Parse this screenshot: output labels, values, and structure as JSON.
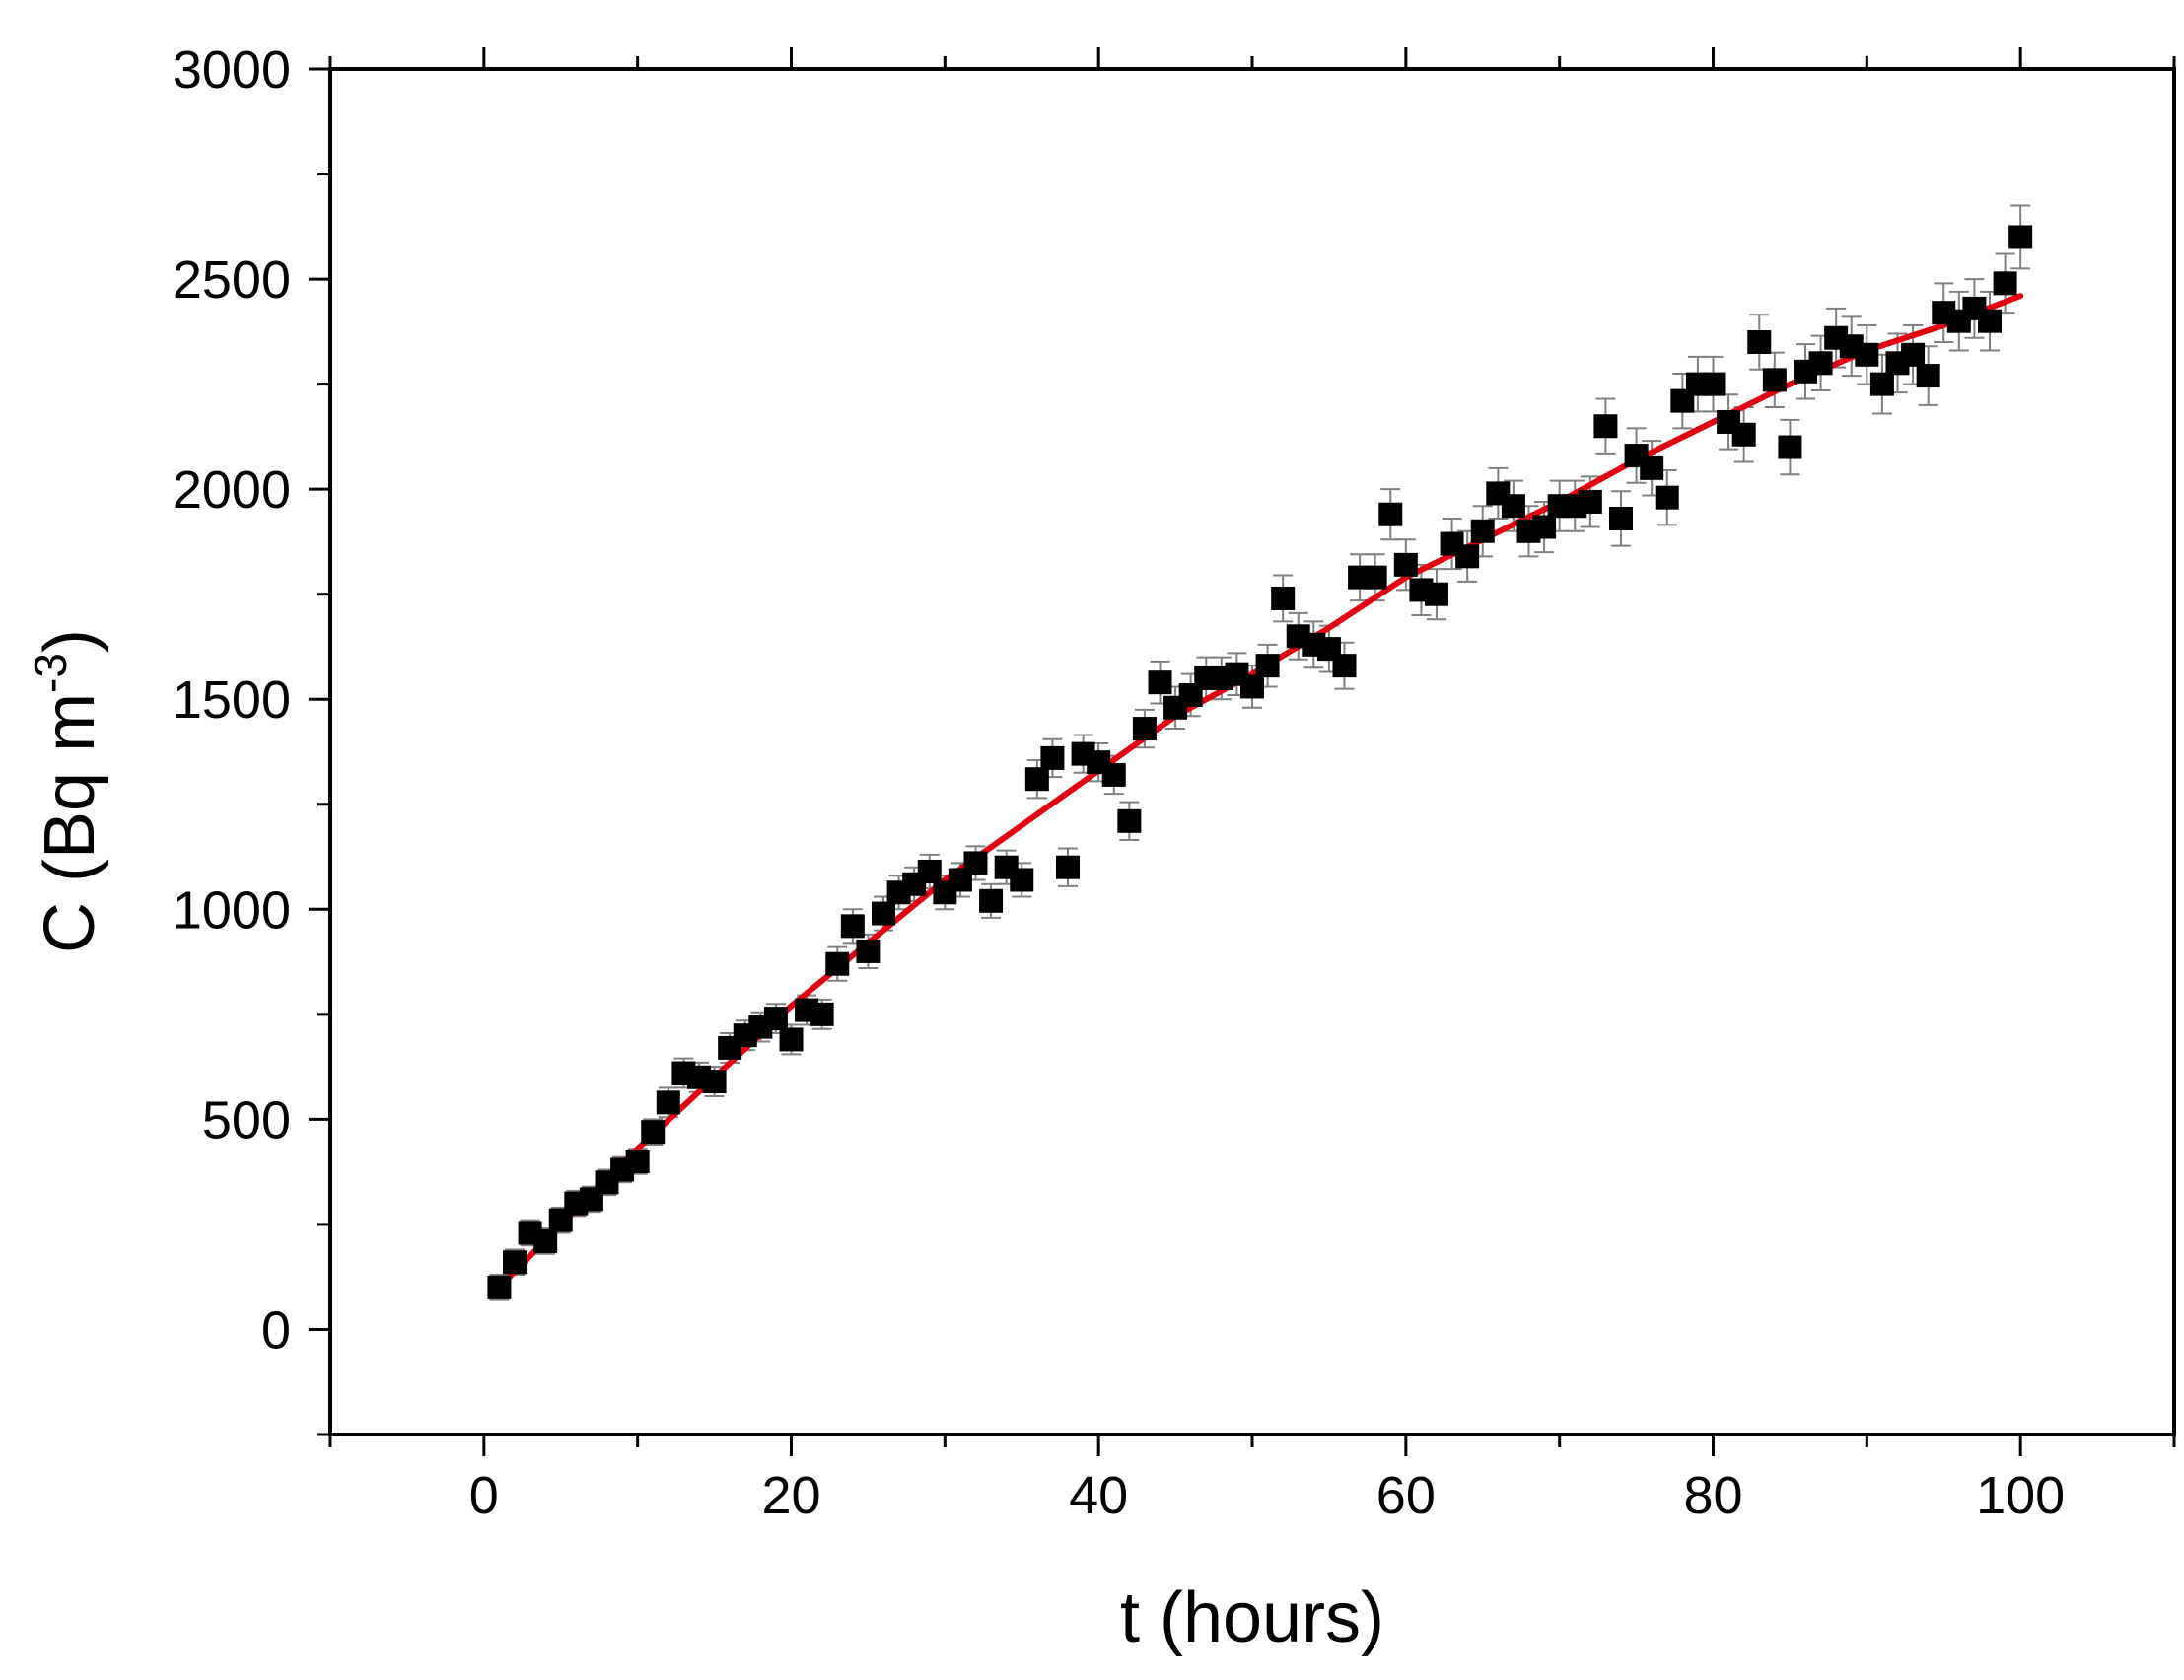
{
  "chart_data": {
    "type": "scatter",
    "xlabel": "t (hours)",
    "ylabel": "C (Bq m",
    "ylabel_sup": "-3",
    "ylabel_close": ")",
    "xlim": [
      -10,
      110
    ],
    "ylim": [
      -250,
      3000
    ],
    "x_ticks": [
      0,
      20,
      40,
      60,
      80,
      100
    ],
    "y_ticks": [
      0,
      500,
      1000,
      1500,
      2000,
      2500,
      3000
    ],
    "x_tick_labels": [
      "0",
      "20",
      "40",
      "60",
      "80",
      "100"
    ],
    "y_tick_labels": [
      "0",
      "500",
      "1000",
      "1500",
      "2000",
      "2500",
      "3000"
    ],
    "grid": false,
    "colors": {
      "points": "#000000",
      "error_bars": "#808080",
      "fit_line": "#e3000f",
      "axes": "#000000"
    },
    "series": [
      {
        "marker": "square",
        "x": [
          1,
          2,
          3,
          4,
          5,
          6,
          7,
          8,
          9,
          10,
          11,
          12,
          13,
          14,
          15,
          16,
          17,
          18,
          19,
          20,
          21,
          22,
          23,
          24,
          25,
          26,
          27,
          28,
          29,
          30,
          31,
          32,
          33,
          34,
          35,
          36,
          37,
          38,
          39,
          40,
          41,
          42,
          43,
          44,
          45,
          46,
          47,
          48,
          49,
          50,
          51,
          52,
          53,
          54,
          55,
          56,
          57,
          58,
          59,
          60,
          61,
          62,
          63,
          64,
          65,
          66,
          67,
          68,
          69,
          70,
          71,
          72,
          73,
          74,
          75,
          76,
          77,
          78,
          79,
          80,
          81,
          82,
          83,
          84,
          85,
          86,
          87,
          88,
          89,
          90,
          91,
          92,
          93,
          94,
          95,
          96,
          97,
          98,
          99,
          100
        ],
        "y": [
          100,
          160,
          230,
          210,
          260,
          300,
          310,
          350,
          380,
          400,
          470,
          540,
          610,
          600,
          590,
          670,
          700,
          720,
          740,
          690,
          760,
          750,
          870,
          960,
          900,
          990,
          1040,
          1060,
          1090,
          1040,
          1070,
          1110,
          1020,
          1100,
          1070,
          1310,
          1360,
          1100,
          1370,
          1350,
          1320,
          1210,
          1430,
          1540,
          1480,
          1510,
          1550,
          1550,
          1560,
          1530,
          1580,
          1740,
          1650,
          1630,
          1620,
          1580,
          1790,
          1790,
          1940,
          1820,
          1760,
          1750,
          1870,
          1840,
          1900,
          1990,
          1960,
          1900,
          1910,
          1960,
          1960,
          1970,
          2150,
          1930,
          2080,
          2050,
          1980,
          2210,
          2250,
          2250,
          2160,
          2130,
          2350,
          2260,
          2100,
          2280,
          2300,
          2360,
          2340,
          2320,
          2250,
          2300,
          2320,
          2270,
          2420,
          2400,
          2430,
          2400,
          2490,
          2600
        ],
        "error": [
          30,
          30,
          30,
          30,
          30,
          30,
          30,
          30,
          30,
          30,
          30,
          35,
          35,
          35,
          35,
          35,
          35,
          35,
          35,
          35,
          35,
          35,
          40,
          40,
          40,
          40,
          40,
          40,
          40,
          40,
          40,
          40,
          40,
          40,
          40,
          45,
          45,
          45,
          45,
          45,
          45,
          45,
          45,
          50,
          50,
          50,
          50,
          50,
          50,
          50,
          50,
          55,
          55,
          55,
          55,
          55,
          55,
          55,
          60,
          60,
          60,
          60,
          60,
          60,
          60,
          60,
          60,
          60,
          60,
          60,
          60,
          60,
          65,
          65,
          65,
          65,
          65,
          65,
          65,
          65,
          65,
          65,
          65,
          65,
          65,
          65,
          65,
          70,
          70,
          70,
          70,
          70,
          70,
          70,
          70,
          70,
          70,
          70,
          70,
          75
        ]
      },
      {
        "type": "line",
        "x": [
          1,
          5,
          10,
          15,
          20,
          25,
          30,
          35,
          40,
          45,
          50,
          55,
          60,
          65,
          70,
          75,
          80,
          85,
          90,
          95,
          100
        ],
        "y": [
          100,
          250,
          430,
          600,
          770,
          920,
          1070,
          1200,
          1330,
          1460,
          1560,
          1670,
          1790,
          1880,
          1970,
          2070,
          2160,
          2250,
          2330,
          2390,
          2460
        ]
      }
    ]
  }
}
